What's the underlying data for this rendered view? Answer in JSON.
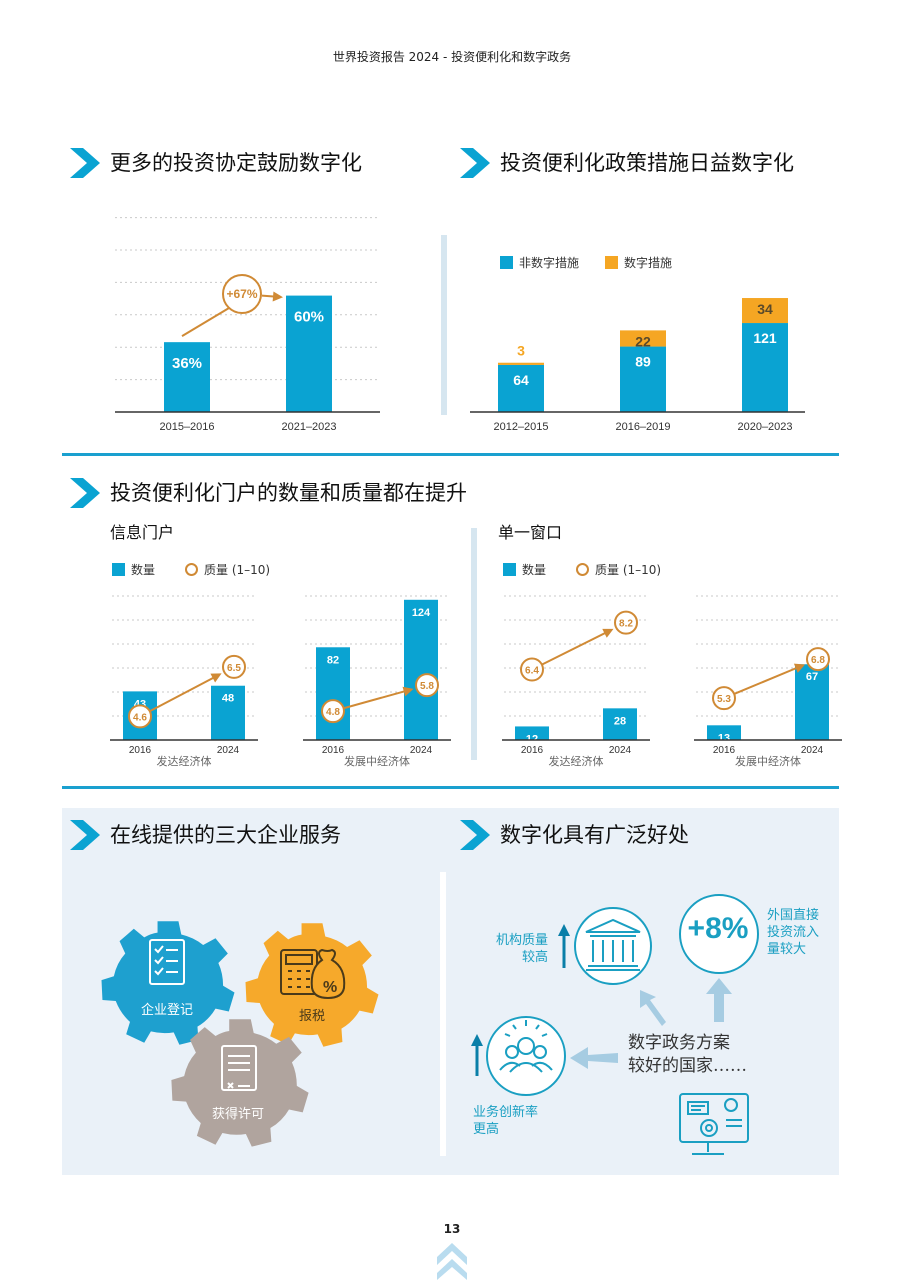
{
  "header": {
    "title": "世界投资报告 2024 - 投资便利化和数字政务"
  },
  "sections": {
    "s1": "更多的投资协定鼓励数字化",
    "s2": "投资便利化政策措施日益数字化",
    "s3": "投资便利化门户的数量和质量都在提升",
    "s4": "在线提供的三大企业服务",
    "s5": "数字化具有广泛好处"
  },
  "portal": {
    "info_title": "信息门户",
    "single_title": "单一窗口",
    "legend_count": "数量",
    "legend_quality": "质量 (1–10)",
    "group_developed": "发达经济体",
    "group_developing": "发展中经济体"
  },
  "legend2": {
    "non_digital": "非数字措施",
    "digital": "数字措施"
  },
  "services": {
    "register": "企业登记",
    "tax": "报税",
    "permit": "获得许可"
  },
  "benefits": {
    "core_line1": "数字政务方案",
    "core_line2": "较好的国家……",
    "fdi_pct": "+8%",
    "fdi_text": [
      "外国直接",
      "投资流入",
      "量较大"
    ],
    "institution_text": [
      "机构质量",
      "较高"
    ],
    "innovation_text": [
      "业务创新率",
      "更高"
    ]
  },
  "page": {
    "number": "13"
  },
  "colors": {
    "blue": "#0aa3d2",
    "orange": "#f5a623",
    "ring": "#d08a35",
    "gear_blue": "#1ea0cf",
    "gear_orange": "#f6a92b",
    "gear_taupe": "#b0a49e",
    "panel": "#eaf1f8"
  },
  "chart_data": [
    {
      "id": "agreements",
      "type": "bar",
      "categories": [
        "2015–2016",
        "2021–2023"
      ],
      "values": [
        36,
        60
      ],
      "value_labels": [
        "36%",
        "60%"
      ],
      "annotation": "+67%",
      "ylim": [
        0,
        100
      ]
    },
    {
      "id": "measures",
      "type": "bar",
      "stacked": true,
      "categories": [
        "2012–2015",
        "2016–2019",
        "2020–2023"
      ],
      "series": [
        {
          "name": "非数字措施",
          "values": [
            64,
            89,
            121
          ]
        },
        {
          "name": "数字措施",
          "values": [
            3,
            22,
            34
          ]
        }
      ],
      "ylim": [
        0,
        170
      ]
    },
    {
      "id": "info-developed",
      "type": "bar",
      "group": "发达经济体",
      "categories": [
        "2016",
        "2024"
      ],
      "count": [
        43,
        48
      ],
      "quality": [
        4.6,
        6.5
      ],
      "ylim": [
        0,
        130
      ]
    },
    {
      "id": "info-developing",
      "type": "bar",
      "group": "发展中经济体",
      "categories": [
        "2016",
        "2024"
      ],
      "count": [
        82,
        124
      ],
      "quality": [
        4.8,
        5.8
      ],
      "ylim": [
        0,
        130
      ]
    },
    {
      "id": "single-developed",
      "type": "bar",
      "group": "发达经济体",
      "categories": [
        "2016",
        "2024"
      ],
      "count": [
        12,
        28
      ],
      "quality": [
        6.4,
        8.2
      ],
      "ylim": [
        0,
        130
      ]
    },
    {
      "id": "single-developing",
      "type": "bar",
      "group": "发展中经济体",
      "categories": [
        "2016",
        "2024"
      ],
      "count": [
        13,
        67
      ],
      "quality": [
        5.3,
        6.8
      ],
      "ylim": [
        0,
        130
      ]
    }
  ]
}
